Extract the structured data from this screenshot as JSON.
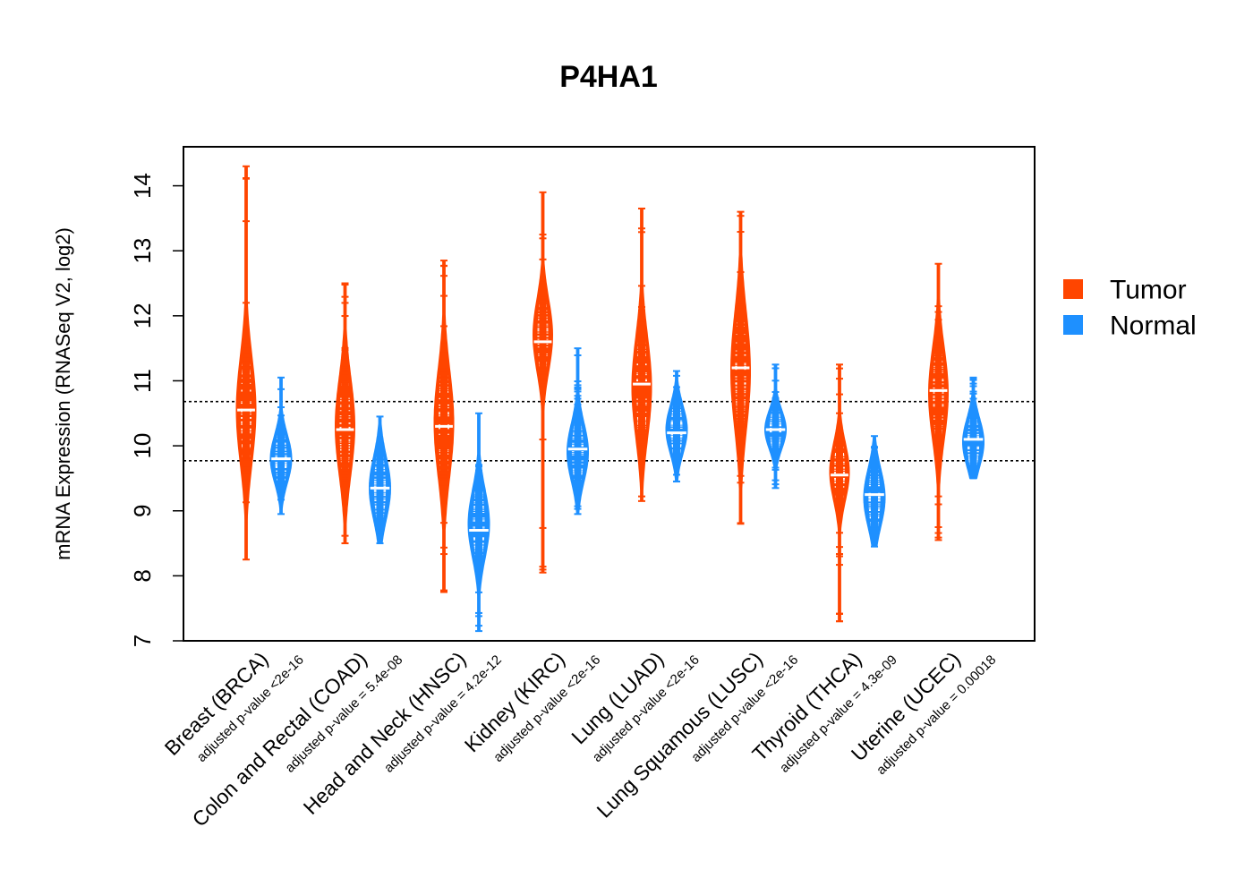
{
  "chart_data": {
    "type": "violin",
    "title": "P4HA1",
    "ylabel": "mRNA Expression (RNASeq V2, log2)",
    "xlabel": "",
    "ylim": [
      7,
      14.6
    ],
    "yticks": [
      7,
      8,
      9,
      10,
      11,
      12,
      13,
      14
    ],
    "reference_lines": [
      10.68,
      9.77
    ],
    "legend": {
      "placement": "right",
      "items": [
        {
          "label": "Tumor",
          "color": "#ff4500"
        },
        {
          "label": "Normal",
          "color": "#1e90ff"
        }
      ]
    },
    "groups": [
      {
        "label": "Breast (BRCA)",
        "pvalue": "adjusted p-value <2e-16",
        "tumor": {
          "median": 10.55,
          "q1": 10.0,
          "q3": 11.1,
          "min": 8.25,
          "max": 14.3,
          "peak": 10.55
        },
        "normal": {
          "median": 9.8,
          "q1": 9.55,
          "q3": 10.05,
          "min": 8.95,
          "max": 11.05,
          "peak": 9.8
        }
      },
      {
        "label": "Colon and Rectal (COAD)",
        "pvalue": "adjusted p-value = 5.4e-08",
        "tumor": {
          "median": 10.25,
          "q1": 9.8,
          "q3": 10.8,
          "min": 8.5,
          "max": 12.5,
          "peak": 10.3
        },
        "normal": {
          "median": 9.35,
          "q1": 9.05,
          "q3": 9.7,
          "min": 8.5,
          "max": 10.45,
          "peak": 9.35
        }
      },
      {
        "label": "Head and Neck (HNSC)",
        "pvalue": "adjusted p-value = 4.2e-12",
        "tumor": {
          "median": 10.3,
          "q1": 9.75,
          "q3": 10.85,
          "min": 7.75,
          "max": 12.85,
          "peak": 10.35
        },
        "normal": {
          "median": 8.7,
          "q1": 8.35,
          "q3": 9.05,
          "min": 7.15,
          "max": 10.5,
          "peak": 8.8
        }
      },
      {
        "label": "Kidney (KIRC)",
        "pvalue": "adjusted p-value <2e-16",
        "tumor": {
          "median": 11.6,
          "q1": 11.25,
          "q3": 12.0,
          "min": 8.05,
          "max": 13.9,
          "peak": 11.7
        },
        "normal": {
          "median": 9.95,
          "q1": 9.6,
          "q3": 10.2,
          "min": 8.95,
          "max": 11.5,
          "peak": 9.9
        }
      },
      {
        "label": "Lung (LUAD)",
        "pvalue": "adjusted p-value <2e-16",
        "tumor": {
          "median": 10.95,
          "q1": 10.45,
          "q3": 11.5,
          "min": 9.15,
          "max": 13.65,
          "peak": 10.9
        },
        "normal": {
          "median": 10.2,
          "q1": 9.95,
          "q3": 10.45,
          "min": 9.45,
          "max": 11.15,
          "peak": 10.25
        }
      },
      {
        "label": "Lung Squamous (LUSC)",
        "pvalue": "adjusted p-value <2e-16",
        "tumor": {
          "median": 11.2,
          "q1": 10.6,
          "q3": 11.8,
          "min": 8.8,
          "max": 13.6,
          "peak": 11.15
        },
        "normal": {
          "median": 10.25,
          "q1": 10.05,
          "q3": 10.45,
          "min": 9.35,
          "max": 11.25,
          "peak": 10.25
        }
      },
      {
        "label": "Thyroid (THCA)",
        "pvalue": "adjusted p-value = 4.3e-09",
        "tumor": {
          "median": 9.55,
          "q1": 9.25,
          "q3": 9.85,
          "min": 7.3,
          "max": 11.25,
          "peak": 9.6
        },
        "normal": {
          "median": 9.25,
          "q1": 8.95,
          "q3": 9.55,
          "min": 8.45,
          "max": 10.15,
          "peak": 9.2
        }
      },
      {
        "label": "Uterine (UCEC)",
        "pvalue": "adjusted p-value = 0.00018",
        "tumor": {
          "median": 10.85,
          "q1": 10.35,
          "q3": 11.3,
          "min": 8.55,
          "max": 12.8,
          "peak": 10.8
        },
        "normal": {
          "median": 10.1,
          "q1": 9.85,
          "q3": 10.35,
          "min": 9.5,
          "max": 11.05,
          "peak": 10.05
        }
      }
    ]
  }
}
